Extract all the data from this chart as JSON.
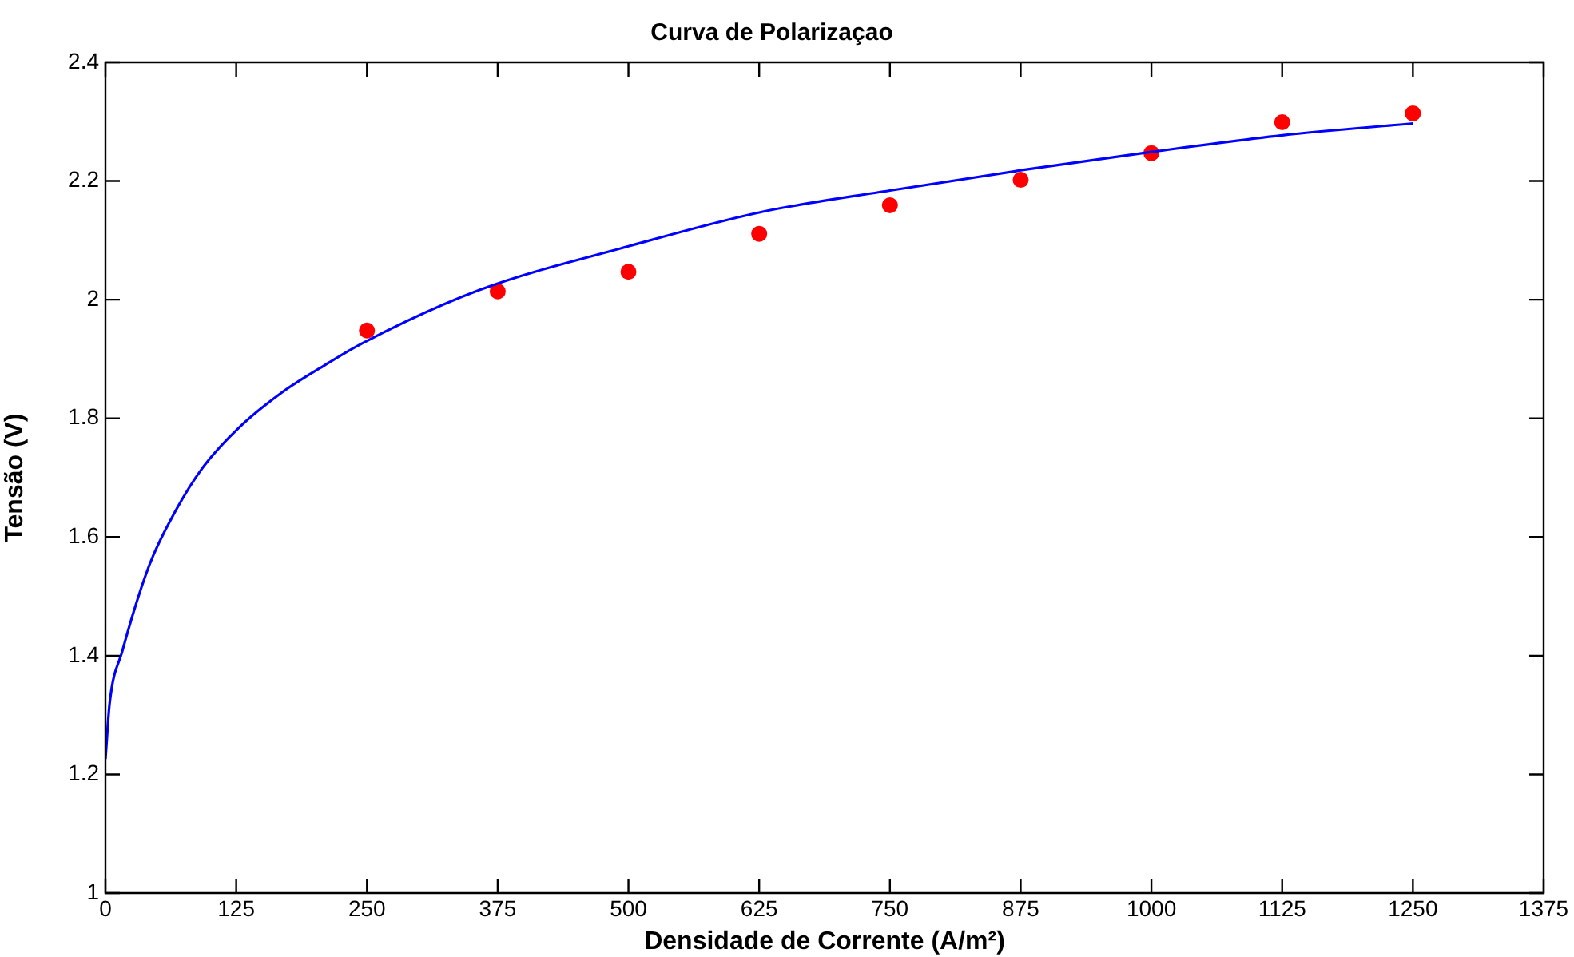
{
  "chart_data": {
    "type": "scatter",
    "title": "Curva de Polarizaçao",
    "xlabel": "Densidade de Corrente (A/m²)",
    "ylabel": "Tensão (V)",
    "xlim": [
      0,
      1375
    ],
    "xticks": [
      0,
      125,
      250,
      375,
      500,
      625,
      750,
      875,
      1000,
      1125,
      1250,
      1375
    ],
    "ylim": [
      1,
      2.4
    ],
    "yticks": [
      1,
      1.2,
      1.4,
      1.6,
      1.8,
      2,
      2.2,
      2.4
    ],
    "grid": false,
    "series": [
      {
        "type": "line",
        "color": "#0000ff",
        "marker": "none",
        "x": [
          0,
          4,
          16,
          42,
          67,
          93,
          128,
          169,
          210,
          245,
          357,
          500,
          625,
          750,
          875,
          1000,
          1125,
          1250
        ],
        "values": [
          1.226,
          1.32,
          1.407,
          1.553,
          1.644,
          1.717,
          1.785,
          1.844,
          1.89,
          1.926,
          2.016,
          2.09,
          2.147,
          2.184,
          2.218,
          2.249,
          2.277,
          2.297
        ]
      },
      {
        "color": "#ff0000",
        "marker": "circle",
        "x": [
          250,
          375,
          500,
          625,
          750,
          875,
          1000,
          1125,
          1250
        ],
        "values": [
          1.948,
          2.014,
          2.047,
          2.111,
          2.159,
          2.202,
          2.247,
          2.299,
          2.314
        ]
      }
    ]
  }
}
